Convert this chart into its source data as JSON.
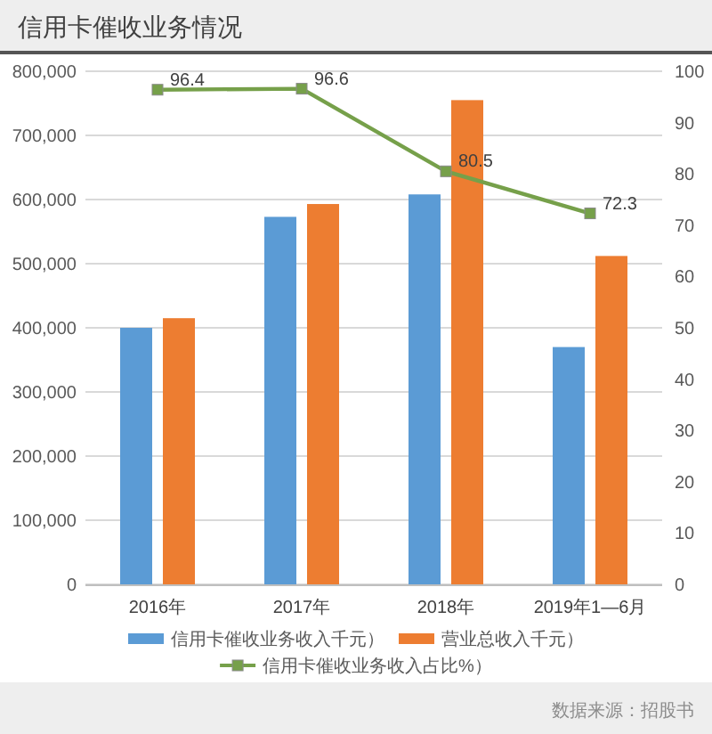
{
  "chart_data": {
    "type": "bar",
    "title": "信用卡催收业务情况",
    "categories": [
      "2016年",
      "2017年",
      "2018年",
      "2019年1—6月"
    ],
    "series": [
      {
        "name": "信用卡催收业务收入千元）",
        "color": "#5b9bd5",
        "values": [
          400000,
          573000,
          608000,
          370000
        ]
      },
      {
        "name": "营业总收入千元）",
        "color": "#ed7d31",
        "values": [
          415000,
          593000,
          755000,
          512000
        ]
      },
      {
        "name": "信用卡催收业务收入占比%）",
        "type": "line",
        "axis": "y2",
        "color": "#76a04a",
        "values": [
          96.4,
          96.6,
          80.5,
          72.3
        ],
        "value_labels": [
          "96.4",
          "96.6",
          "80.5",
          "72.3"
        ]
      }
    ],
    "ylim": [
      0,
      800000
    ],
    "yticks": [
      0,
      {
        "value": 100000,
        "label": "100,000"
      },
      {
        "value": 200000,
        "label": "200,000"
      },
      {
        "value": 300000,
        "label": "300,000"
      },
      {
        "value": 400000,
        "label": "400,000"
      },
      {
        "value": 500000,
        "label": "500,000"
      },
      {
        "value": 600000,
        "label": "600,000"
      },
      {
        "value": 700000,
        "label": "700,000"
      },
      {
        "value": 800000,
        "label": "800,000"
      }
    ],
    "y2lim": [
      0,
      100
    ],
    "y2ticks": [
      0,
      10,
      20,
      30,
      40,
      50,
      60,
      70,
      80,
      90,
      100
    ],
    "grid": "y",
    "legend": "bottom",
    "marker": "square",
    "annotations": [
      "数据来源：招股书"
    ]
  }
}
